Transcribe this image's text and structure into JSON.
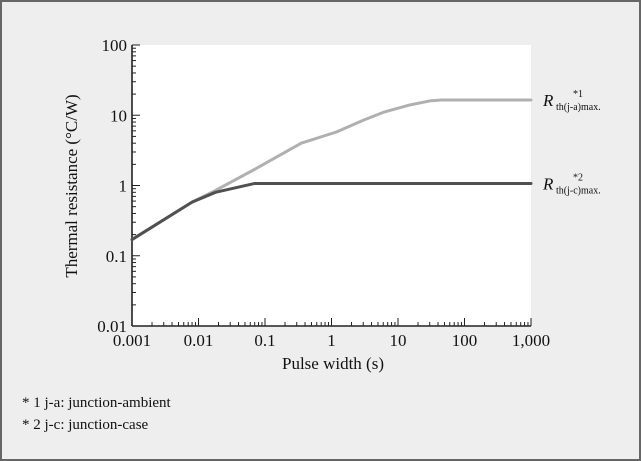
{
  "chart_data": {
    "type": "line",
    "title": "",
    "xlabel": "Pulse width (s)",
    "ylabel": "Thermal resistance (°C/W)",
    "xscale": "log",
    "yscale": "log",
    "xlim": [
      0.001,
      1000
    ],
    "ylim": [
      0.01,
      100
    ],
    "xticks": [
      0.001,
      0.01,
      0.1,
      1,
      10,
      100,
      1000
    ],
    "xtick_labels": [
      "0.001",
      "0.01",
      "0.1",
      "1",
      "10",
      "100",
      "1,000"
    ],
    "yticks": [
      0.01,
      0.1,
      1,
      10,
      100
    ],
    "ytick_labels": [
      "0.01",
      "0.1",
      "1",
      "10",
      "100"
    ],
    "grid": false,
    "series": [
      {
        "label_main": "R",
        "label_sub": "th(j-a)max.",
        "label_sup": "*1",
        "color": "#b0b0b0",
        "x": [
          0.001,
          0.008,
          0.018,
          0.07,
          0.35,
          1.2,
          3,
          6,
          15,
          30,
          45,
          1000
        ],
        "y": [
          0.17,
          0.58,
          0.85,
          1.7,
          4.0,
          5.8,
          8.5,
          11,
          14,
          16,
          16.5,
          16.5
        ]
      },
      {
        "label_main": "R",
        "label_sub": "th(j-c)max.",
        "label_sup": "*2",
        "color": "#505050",
        "x": [
          0.001,
          0.008,
          0.018,
          0.07,
          1000
        ],
        "y": [
          0.17,
          0.58,
          0.8,
          1.07,
          1.07
        ]
      }
    ]
  },
  "footnotes": [
    "* 1 j-a: junction-ambient",
    "* 2 j-c: junction-case"
  ]
}
